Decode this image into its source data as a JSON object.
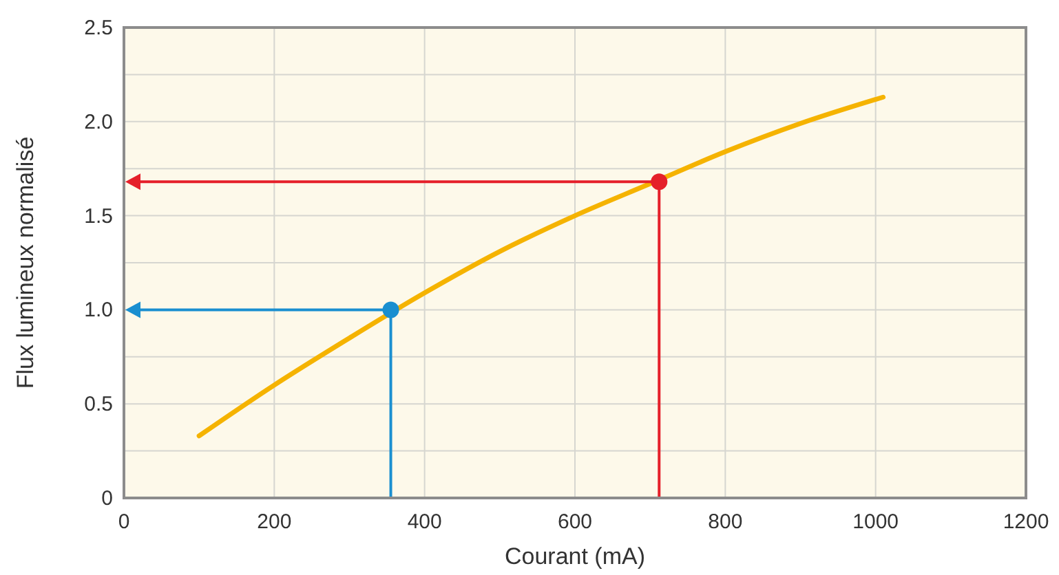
{
  "chart_data": {
    "type": "line",
    "xlabel": "Courant (mA)",
    "ylabel": "Flux lumineux normalisé",
    "xlim": [
      0,
      1200
    ],
    "ylim": [
      0,
      2.5
    ],
    "xticks": [
      0,
      200,
      400,
      600,
      800,
      1000,
      1200
    ],
    "yticks": [
      0,
      {
        "value": 0.25,
        "label": null
      },
      0.5,
      {
        "value": 0.75,
        "label": null
      },
      {
        "value": 1,
        "label": "1.0"
      },
      {
        "value": 1.25,
        "label": null
      },
      1.5,
      {
        "value": 1.75,
        "label": null
      },
      {
        "value": 2,
        "label": "2.0"
      },
      {
        "value": 2.25,
        "label": null
      },
      2.5
    ],
    "grid": true,
    "series": [
      {
        "color": "#f5b300",
        "x": [
          100,
          200,
          300,
          400,
          500,
          600,
          700,
          800,
          900,
          1010
        ],
        "values": [
          0.33,
          0.6,
          0.85,
          1.09,
          1.31,
          1.5,
          1.67,
          1.84,
          1.99,
          2.13
        ]
      },
      {
        "type": "scatter",
        "color": "#1a8fd0",
        "x": [
          355
        ],
        "values": [
          1.0
        ],
        "marker": "circle"
      },
      {
        "type": "scatter",
        "color": "#e5202a",
        "x": [
          712
        ],
        "values": [
          1.68
        ],
        "marker": "circle"
      }
    ]
  }
}
